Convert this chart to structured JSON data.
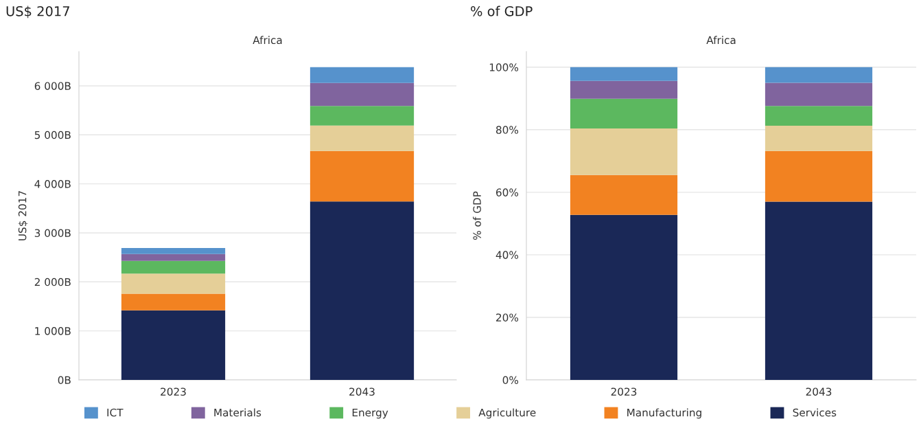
{
  "chart_data": [
    {
      "type": "bar",
      "title": "US$ 2017",
      "subtitle": "Africa",
      "ylabel": "US$ 2017",
      "categories": [
        "2023",
        "2043"
      ],
      "stacked": true,
      "grid": "y",
      "legend": "bottom",
      "ylim": [
        0,
        6700
      ],
      "yticks": [
        {
          "value": 0,
          "label": "0B"
        },
        {
          "value": 1000,
          "label": "1 000B"
        },
        {
          "value": 2000,
          "label": "2 000B"
        },
        {
          "value": 3000,
          "label": "3 000B"
        },
        {
          "value": 4000,
          "label": "4 000B"
        },
        {
          "value": 5000,
          "label": "5 000B"
        },
        {
          "value": 6000,
          "label": "6 000B"
        }
      ],
      "series": [
        {
          "name": "Services",
          "color": "#1a2857",
          "values": [
            1420,
            3640
          ]
        },
        {
          "name": "Manufacturing",
          "color": "#f28221",
          "values": [
            340,
            1030
          ]
        },
        {
          "name": "Agriculture",
          "color": "#e5cf98",
          "values": [
            410,
            520
          ]
        },
        {
          "name": "Energy",
          "color": "#5cb85f",
          "values": [
            260,
            400
          ]
        },
        {
          "name": "Materials",
          "color": "#80649e",
          "values": [
            140,
            470
          ]
        },
        {
          "name": "ICT",
          "color": "#5692cc",
          "values": [
            120,
            320
          ]
        }
      ]
    },
    {
      "type": "bar",
      "title": "% of GDP",
      "subtitle": "Africa",
      "ylabel": "% of GDP",
      "categories": [
        "2023",
        "2043"
      ],
      "stacked": true,
      "grid": "y",
      "ylim": [
        0,
        105
      ],
      "yticks": [
        {
          "value": 0,
          "label": "0%"
        },
        {
          "value": 20,
          "label": "20%"
        },
        {
          "value": 40,
          "label": "40%"
        },
        {
          "value": 60,
          "label": "60%"
        },
        {
          "value": 80,
          "label": "80%"
        },
        {
          "value": 100,
          "label": "100%"
        }
      ],
      "series": [
        {
          "color": "#1a2857",
          "values": [
            52.8,
            57.0
          ]
        },
        {
          "color": "#f28221",
          "values": [
            12.7,
            16.2
          ]
        },
        {
          "color": "#e5cf98",
          "values": [
            14.9,
            8.1
          ]
        },
        {
          "color": "#5cb85f",
          "values": [
            9.5,
            6.3
          ]
        },
        {
          "color": "#80649e",
          "values": [
            5.7,
            7.4
          ]
        },
        {
          "color": "#5692cc",
          "values": [
            4.4,
            5.0
          ]
        }
      ]
    }
  ]
}
